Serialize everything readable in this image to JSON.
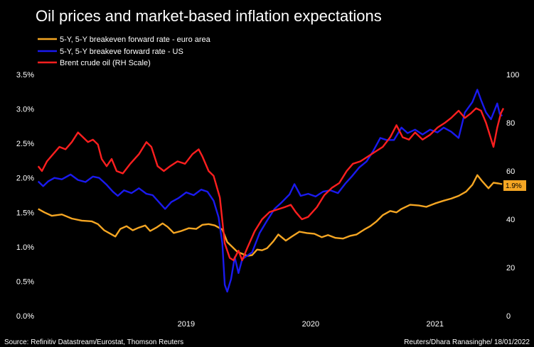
{
  "chart_data": {
    "type": "line",
    "title": "Oil prices and market-based inflation expectations",
    "source": "Source: Refinitiv Datastream/Eurostat, Thomson Reuters",
    "credit": "Reuters/Dhara Ranasinghe/ 18/01/2022",
    "xlabel": "",
    "ylabel": "",
    "x_ticks": [
      "2019",
      "2020",
      "2021"
    ],
    "y_left": {
      "ticks": [
        "0.0%",
        "0.5%",
        "1.0%",
        "1.5%",
        "2.0%",
        "2.5%",
        "3.0%",
        "3.5%"
      ],
      "range": [
        0,
        3.5
      ]
    },
    "y_right": {
      "ticks": [
        "0",
        "20",
        "40",
        "60",
        "80",
        "100"
      ],
      "range": [
        0,
        100
      ]
    },
    "x_range": [
      2018.3,
      2022.05
    ],
    "legend_position": "top-left",
    "end_label": "1.9%",
    "series": [
      {
        "name": "5-Y, 5-Y breakeven forward rate - euro area",
        "color": "#f5a623",
        "axis": "left",
        "points": [
          [
            2018.31,
            1.55
          ],
          [
            2018.36,
            1.5
          ],
          [
            2018.42,
            1.45
          ],
          [
            2018.5,
            1.47
          ],
          [
            2018.58,
            1.41
          ],
          [
            2018.66,
            1.38
          ],
          [
            2018.74,
            1.37
          ],
          [
            2018.79,
            1.33
          ],
          [
            2018.84,
            1.24
          ],
          [
            2018.88,
            1.2
          ],
          [
            2018.93,
            1.15
          ],
          [
            2018.97,
            1.26
          ],
          [
            2019.02,
            1.3
          ],
          [
            2019.07,
            1.24
          ],
          [
            2019.12,
            1.28
          ],
          [
            2019.17,
            1.31
          ],
          [
            2019.21,
            1.23
          ],
          [
            2019.26,
            1.28
          ],
          [
            2019.31,
            1.34
          ],
          [
            2019.35,
            1.29
          ],
          [
            2019.4,
            1.2
          ],
          [
            2019.46,
            1.23
          ],
          [
            2019.52,
            1.27
          ],
          [
            2019.58,
            1.26
          ],
          [
            2019.63,
            1.32
          ],
          [
            2019.68,
            1.33
          ],
          [
            2019.73,
            1.31
          ],
          [
            2019.79,
            1.25
          ],
          [
            2019.83,
            1.07
          ],
          [
            2019.87,
            1.0
          ],
          [
            2019.91,
            0.93
          ],
          [
            2019.95,
            0.9
          ],
          [
            2019.99,
            0.87
          ],
          [
            2020.03,
            0.88
          ],
          [
            2020.07,
            0.96
          ],
          [
            2020.11,
            0.95
          ],
          [
            2020.15,
            0.98
          ],
          [
            2020.2,
            1.08
          ],
          [
            2020.24,
            1.18
          ],
          [
            2020.3,
            1.09
          ],
          [
            2020.35,
            1.15
          ],
          [
            2020.41,
            1.22
          ],
          [
            2020.47,
            1.2
          ],
          [
            2020.53,
            1.19
          ],
          [
            2020.59,
            1.14
          ],
          [
            2020.64,
            1.17
          ],
          [
            2020.7,
            1.13
          ],
          [
            2020.76,
            1.12
          ],
          [
            2020.82,
            1.16
          ],
          [
            2020.87,
            1.18
          ],
          [
            2020.93,
            1.25
          ],
          [
            2020.98,
            1.3
          ],
          [
            2021.03,
            1.37
          ],
          [
            2021.08,
            1.46
          ],
          [
            2021.14,
            1.52
          ],
          [
            2021.19,
            1.5
          ],
          [
            2021.23,
            1.55
          ],
          [
            2021.3,
            1.61
          ],
          [
            2021.37,
            1.6
          ],
          [
            2021.43,
            1.58
          ],
          [
            2021.5,
            1.63
          ],
          [
            2021.57,
            1.67
          ],
          [
            2021.63,
            1.7
          ],
          [
            2021.69,
            1.74
          ],
          [
            2021.75,
            1.8
          ],
          [
            2021.8,
            1.9
          ],
          [
            2021.84,
            2.04
          ],
          [
            2021.88,
            1.95
          ],
          [
            2021.93,
            1.85
          ],
          [
            2021.97,
            1.93
          ],
          [
            2022.01,
            1.92
          ],
          [
            2022.04,
            1.91
          ]
        ]
      },
      {
        "name": "5-Y, 5-Y breakeve forward rate - US",
        "color": "#1a1aee",
        "axis": "left",
        "points": [
          [
            2018.31,
            1.95
          ],
          [
            2018.35,
            1.88
          ],
          [
            2018.39,
            1.95
          ],
          [
            2018.44,
            2.0
          ],
          [
            2018.5,
            1.98
          ],
          [
            2018.57,
            2.05
          ],
          [
            2018.63,
            1.97
          ],
          [
            2018.69,
            1.94
          ],
          [
            2018.75,
            2.02
          ],
          [
            2018.8,
            2.0
          ],
          [
            2018.86,
            1.9
          ],
          [
            2018.91,
            1.8
          ],
          [
            2018.95,
            1.74
          ],
          [
            2019.0,
            1.82
          ],
          [
            2019.06,
            1.78
          ],
          [
            2019.12,
            1.85
          ],
          [
            2019.18,
            1.77
          ],
          [
            2019.23,
            1.75
          ],
          [
            2019.29,
            1.63
          ],
          [
            2019.33,
            1.55
          ],
          [
            2019.38,
            1.65
          ],
          [
            2019.44,
            1.71
          ],
          [
            2019.5,
            1.79
          ],
          [
            2019.56,
            1.75
          ],
          [
            2019.62,
            1.83
          ],
          [
            2019.67,
            1.8
          ],
          [
            2019.72,
            1.67
          ],
          [
            2019.76,
            1.43
          ],
          [
            2019.79,
            1.05
          ],
          [
            2019.81,
            0.45
          ],
          [
            2019.83,
            0.35
          ],
          [
            2019.86,
            0.53
          ],
          [
            2019.89,
            0.85
          ],
          [
            2019.92,
            0.62
          ],
          [
            2019.95,
            0.82
          ],
          [
            2019.98,
            0.86
          ],
          [
            2020.03,
            0.92
          ],
          [
            2020.09,
            1.2
          ],
          [
            2020.15,
            1.38
          ],
          [
            2020.21,
            1.55
          ],
          [
            2020.27,
            1.65
          ],
          [
            2020.33,
            1.76
          ],
          [
            2020.37,
            1.91
          ],
          [
            2020.42,
            1.74
          ],
          [
            2020.48,
            1.77
          ],
          [
            2020.54,
            1.73
          ],
          [
            2020.6,
            1.8
          ],
          [
            2020.66,
            1.82
          ],
          [
            2020.72,
            1.78
          ],
          [
            2020.78,
            1.92
          ],
          [
            2020.83,
            2.02
          ],
          [
            2020.89,
            2.15
          ],
          [
            2020.95,
            2.24
          ],
          [
            2021.0,
            2.38
          ],
          [
            2021.06,
            2.58
          ],
          [
            2021.11,
            2.55
          ],
          [
            2021.17,
            2.55
          ],
          [
            2021.23,
            2.73
          ],
          [
            2021.28,
            2.65
          ],
          [
            2021.34,
            2.7
          ],
          [
            2021.4,
            2.63
          ],
          [
            2021.46,
            2.7
          ],
          [
            2021.52,
            2.66
          ],
          [
            2021.57,
            2.73
          ],
          [
            2021.63,
            2.67
          ],
          [
            2021.69,
            2.58
          ],
          [
            2021.74,
            2.95
          ],
          [
            2021.8,
            3.1
          ],
          [
            2021.84,
            3.28
          ],
          [
            2021.87,
            3.13
          ],
          [
            2021.91,
            2.95
          ],
          [
            2021.95,
            2.85
          ],
          [
            2022.0,
            3.08
          ],
          [
            2022.02,
            2.93
          ],
          [
            2022.04,
            2.9
          ]
        ]
      },
      {
        "name": "Brent crude oil (RH Scale)",
        "color": "#ff1f1f",
        "axis": "right",
        "points": [
          [
            2018.31,
            62
          ],
          [
            2018.34,
            60
          ],
          [
            2018.38,
            64
          ],
          [
            2018.43,
            67
          ],
          [
            2018.48,
            70
          ],
          [
            2018.53,
            69
          ],
          [
            2018.58,
            72
          ],
          [
            2018.63,
            76
          ],
          [
            2018.67,
            74
          ],
          [
            2018.71,
            72
          ],
          [
            2018.75,
            73
          ],
          [
            2018.79,
            71
          ],
          [
            2018.82,
            65
          ],
          [
            2018.86,
            62
          ],
          [
            2018.9,
            65
          ],
          [
            2018.94,
            60
          ],
          [
            2018.99,
            59
          ],
          [
            2019.05,
            63
          ],
          [
            2019.12,
            67
          ],
          [
            2019.18,
            72
          ],
          [
            2019.22,
            70
          ],
          [
            2019.27,
            62
          ],
          [
            2019.32,
            60
          ],
          [
            2019.37,
            62
          ],
          [
            2019.43,
            64
          ],
          [
            2019.49,
            63
          ],
          [
            2019.55,
            67
          ],
          [
            2019.6,
            69
          ],
          [
            2019.63,
            66
          ],
          [
            2019.68,
            60
          ],
          [
            2019.72,
            58
          ],
          [
            2019.77,
            49
          ],
          [
            2019.81,
            30
          ],
          [
            2019.85,
            24
          ],
          [
            2019.88,
            23
          ],
          [
            2019.92,
            27
          ],
          [
            2019.95,
            23
          ],
          [
            2019.99,
            28
          ],
          [
            2020.05,
            35
          ],
          [
            2020.11,
            40
          ],
          [
            2020.17,
            43
          ],
          [
            2020.23,
            44
          ],
          [
            2020.29,
            45
          ],
          [
            2020.34,
            46
          ],
          [
            2020.38,
            43
          ],
          [
            2020.43,
            40
          ],
          [
            2020.48,
            41
          ],
          [
            2020.55,
            45
          ],
          [
            2020.61,
            50
          ],
          [
            2020.67,
            53
          ],
          [
            2020.73,
            55
          ],
          [
            2020.79,
            60
          ],
          [
            2020.84,
            63
          ],
          [
            2020.9,
            64
          ],
          [
            2020.96,
            66
          ],
          [
            2021.02,
            68
          ],
          [
            2021.08,
            70
          ],
          [
            2021.14,
            74
          ],
          [
            2021.19,
            79
          ],
          [
            2021.24,
            74
          ],
          [
            2021.29,
            73
          ],
          [
            2021.34,
            76
          ],
          [
            2021.4,
            73
          ],
          [
            2021.46,
            75
          ],
          [
            2021.52,
            78
          ],
          [
            2021.58,
            80
          ],
          [
            2021.63,
            82
          ],
          [
            2021.69,
            85
          ],
          [
            2021.74,
            82
          ],
          [
            2021.79,
            84
          ],
          [
            2021.83,
            86
          ],
          [
            2021.87,
            85
          ],
          [
            2021.91,
            80
          ],
          [
            2021.94,
            75
          ],
          [
            2021.97,
            70
          ],
          [
            2022.0,
            78
          ],
          [
            2022.03,
            84
          ],
          [
            2022.05,
            86
          ]
        ]
      }
    ]
  }
}
